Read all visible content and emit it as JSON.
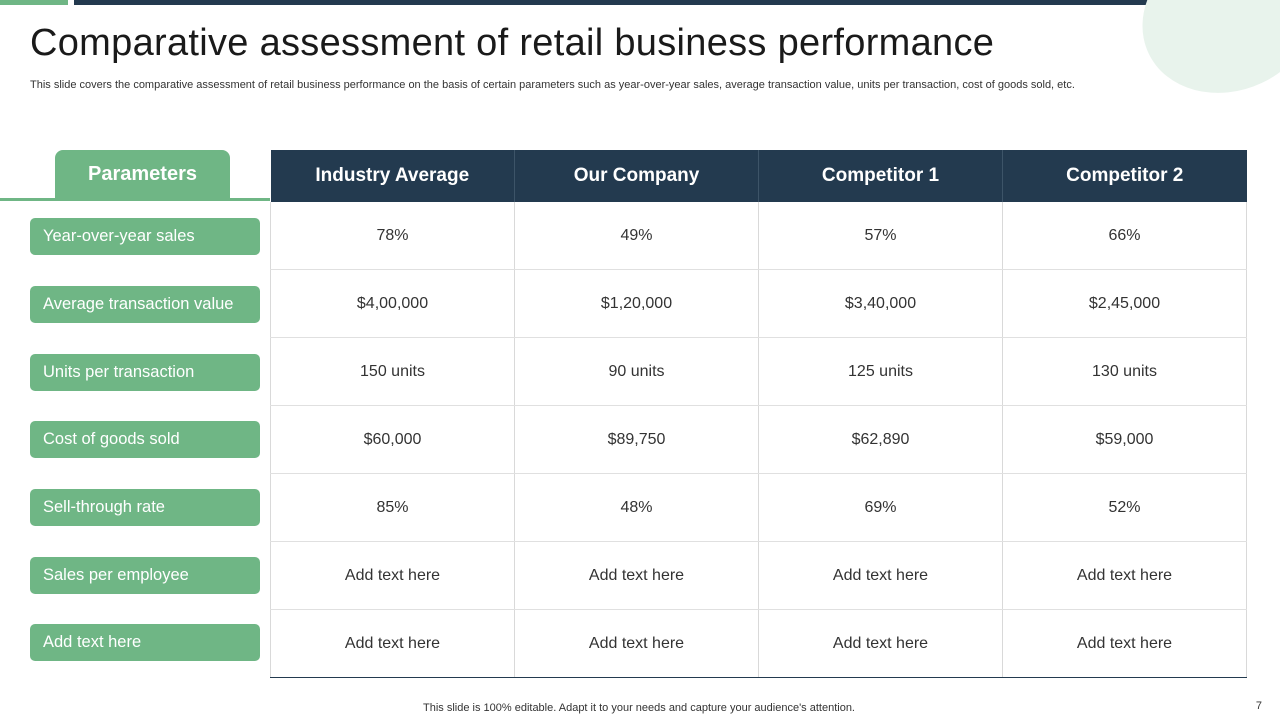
{
  "title": "Comparative assessment of retail business performance",
  "subtitle": "This slide covers the comparative assessment of retail business performance on the basis of certain parameters such as year-over-year sales, average transaction value, units per transaction, cost of goods sold, etc.",
  "parameters_header": "Parameters",
  "columns": [
    "Industry Average",
    "Our Company",
    "Competitor 1",
    "Competitor 2"
  ],
  "rows": [
    {
      "parameter": "Year-over-year sales",
      "values": [
        "78%",
        "49%",
        "57%",
        "66%"
      ]
    },
    {
      "parameter": "Average transaction value",
      "values": [
        "$4,00,000",
        "$1,20,000",
        "$3,40,000",
        "$2,45,000"
      ]
    },
    {
      "parameter": "Units per transaction",
      "values": [
        "150 units",
        "90 units",
        "125 units",
        "130 units"
      ]
    },
    {
      "parameter": "Cost of goods sold",
      "values": [
        "$60,000",
        "$89,750",
        "$62,890",
        "$59,000"
      ]
    },
    {
      "parameter": "Sell-through rate",
      "values": [
        "85%",
        "48%",
        "69%",
        "52%"
      ]
    },
    {
      "parameter": "Sales per employee",
      "values": [
        "Add text here",
        "Add text here",
        "Add text here",
        "Add text here"
      ]
    },
    {
      "parameter": "Add text here",
      "values": [
        "Add text here",
        "Add text here",
        "Add text here",
        "Add text here"
      ]
    }
  ],
  "footer": "This slide is 100% editable. Adapt it to your needs and capture your audience's attention.",
  "page_number": "7",
  "colors": {
    "accent_green": "#6fb685",
    "header_navy": "#233a4f"
  }
}
